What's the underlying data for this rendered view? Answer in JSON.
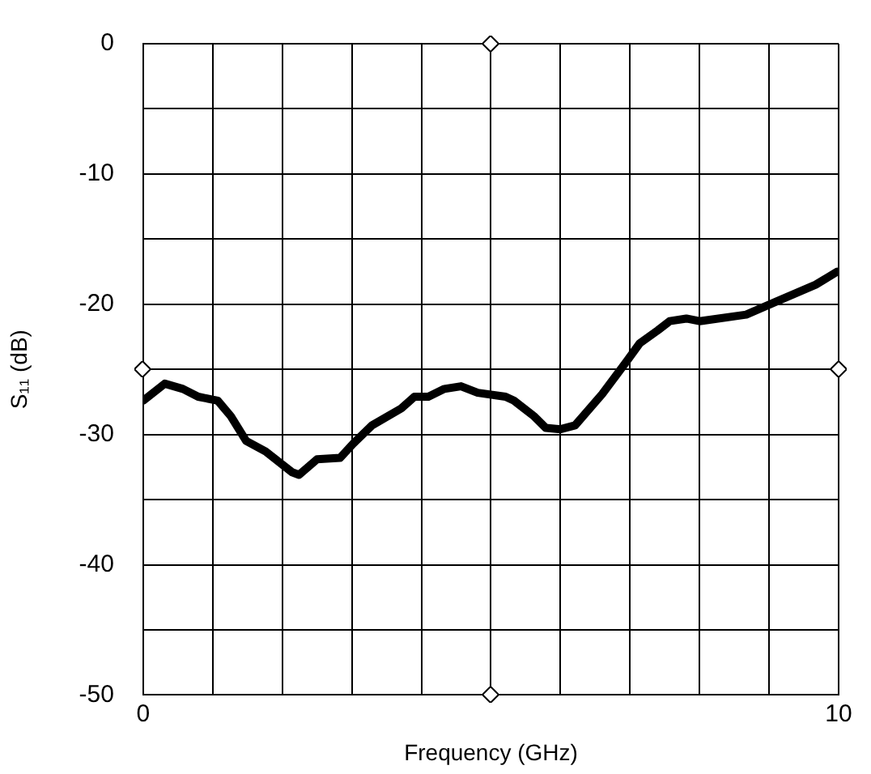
{
  "chart_data": {
    "type": "line",
    "xlabel": "Frequency (GHz)",
    "ylabel": "S₁₁ (dB)",
    "series": [
      {
        "color": "#000000",
        "x": [
          0,
          0.31,
          0.57,
          0.79,
          1.07,
          1.26,
          1.48,
          1.76,
          2.14,
          2.24,
          2.5,
          2.83,
          3.02,
          3.29,
          3.71,
          3.9,
          4.1,
          4.33,
          4.57,
          4.81,
          5.21,
          5.33,
          5.62,
          5.79,
          6.0,
          6.21,
          6.6,
          6.95,
          7.14,
          7.4,
          7.57,
          7.81,
          8.0,
          8.67,
          9.1,
          9.67,
          9.98
        ],
        "values": [
          -27.4,
          -26.1,
          -26.5,
          -27.1,
          -27.4,
          -28.6,
          -30.5,
          -31.3,
          -32.9,
          -33.1,
          -31.9,
          -31.8,
          -30.7,
          -29.3,
          -28.0,
          -27.1,
          -27.1,
          -26.5,
          -26.3,
          -26.8,
          -27.1,
          -27.4,
          -28.6,
          -29.5,
          -29.6,
          -29.3,
          -26.9,
          -24.4,
          -23.0,
          -22.0,
          -21.3,
          -21.1,
          -21.3,
          -20.8,
          -19.8,
          -18.5,
          -17.5
        ]
      }
    ],
    "xlim": [
      0,
      10
    ],
    "xticks": [
      0,
      {
        "value": 1,
        "label": null
      },
      {
        "value": 2,
        "label": null
      },
      {
        "value": 3,
        "label": null
      },
      {
        "value": 4,
        "label": null
      },
      {
        "value": 5,
        "label": null
      },
      {
        "value": 6,
        "label": null
      },
      {
        "value": 7,
        "label": null
      },
      {
        "value": 8,
        "label": null
      },
      {
        "value": 9,
        "label": null
      },
      10
    ],
    "ylim": [
      -50,
      0
    ],
    "yticks": [
      -50,
      {
        "value": -45,
        "label": null
      },
      -40,
      {
        "value": -35,
        "label": null
      },
      -30,
      {
        "value": -25,
        "label": null
      },
      -20,
      {
        "value": -15,
        "label": null
      },
      -10,
      {
        "value": -5,
        "label": null
      },
      0
    ],
    "grid": true,
    "legend": false,
    "marker": "none",
    "line_style": "solid"
  }
}
